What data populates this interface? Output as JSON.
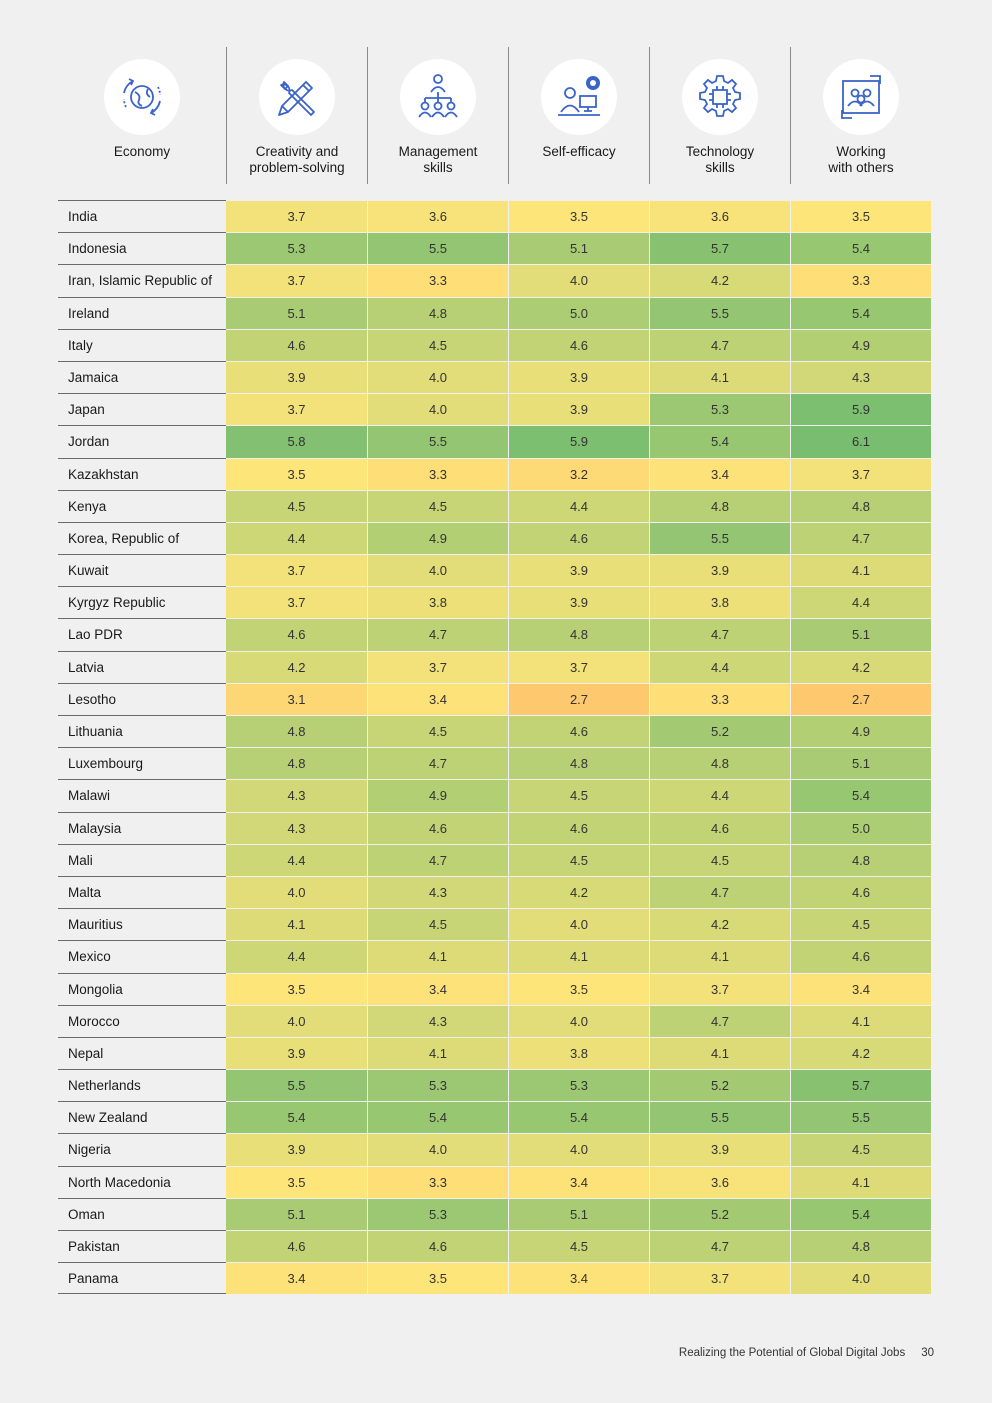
{
  "header": {
    "economy_label": "Economy",
    "metrics": [
      {
        "label": "Creativity and\nproblem-solving",
        "icon": "tools-pencil-icon"
      },
      {
        "label": "Management\nskills",
        "icon": "team-hierarchy-icon"
      },
      {
        "label": "Self-efficacy",
        "icon": "person-computer-icon"
      },
      {
        "label": "Technology\nskills",
        "icon": "gear-chip-icon"
      },
      {
        "label": "Working\nwith others",
        "icon": "group-collaboration-icon"
      }
    ],
    "economy_icon": "globe-cycle-icon"
  },
  "colors": {
    "scale_low": "#fdc86e",
    "scale_mid": "#fde57a",
    "scale_high": "#78bd70"
  },
  "rows": [
    {
      "economy": "India",
      "values": [
        "3.7",
        "3.6",
        "3.5",
        "3.6",
        "3.5"
      ]
    },
    {
      "economy": "Indonesia",
      "values": [
        "5.3",
        "5.5",
        "5.1",
        "5.7",
        "5.4"
      ]
    },
    {
      "economy": "Iran, Islamic Republic of",
      "values": [
        "3.7",
        "3.3",
        "4.0",
        "4.2",
        "3.3"
      ]
    },
    {
      "economy": "Ireland",
      "values": [
        "5.1",
        "4.8",
        "5.0",
        "5.5",
        "5.4"
      ]
    },
    {
      "economy": "Italy",
      "values": [
        "4.6",
        "4.5",
        "4.6",
        "4.7",
        "4.9"
      ]
    },
    {
      "economy": "Jamaica",
      "values": [
        "3.9",
        "4.0",
        "3.9",
        "4.1",
        "4.3"
      ]
    },
    {
      "economy": "Japan",
      "values": [
        "3.7",
        "4.0",
        "3.9",
        "5.3",
        "5.9"
      ]
    },
    {
      "economy": "Jordan",
      "values": [
        "5.8",
        "5.5",
        "5.9",
        "5.4",
        "6.1"
      ]
    },
    {
      "economy": "Kazakhstan",
      "values": [
        "3.5",
        "3.3",
        "3.2",
        "3.4",
        "3.7"
      ]
    },
    {
      "economy": "Kenya",
      "values": [
        "4.5",
        "4.5",
        "4.4",
        "4.8",
        "4.8"
      ]
    },
    {
      "economy": "Korea, Republic of",
      "values": [
        "4.4",
        "4.9",
        "4.6",
        "5.5",
        "4.7"
      ]
    },
    {
      "economy": "Kuwait",
      "values": [
        "3.7",
        "4.0",
        "3.9",
        "3.9",
        "4.1"
      ]
    },
    {
      "economy": "Kyrgyz Republic",
      "values": [
        "3.7",
        "3.8",
        "3.9",
        "3.8",
        "4.4"
      ]
    },
    {
      "economy": "Lao PDR",
      "values": [
        "4.6",
        "4.7",
        "4.8",
        "4.7",
        "5.1"
      ]
    },
    {
      "economy": "Latvia",
      "values": [
        "4.2",
        "3.7",
        "3.7",
        "4.4",
        "4.2"
      ]
    },
    {
      "economy": "Lesotho",
      "values": [
        "3.1",
        "3.4",
        "2.7",
        "3.3",
        "2.7"
      ]
    },
    {
      "economy": "Lithuania",
      "values": [
        "4.8",
        "4.5",
        "4.6",
        "5.2",
        "4.9"
      ]
    },
    {
      "economy": "Luxembourg",
      "values": [
        "4.8",
        "4.7",
        "4.8",
        "4.8",
        "5.1"
      ]
    },
    {
      "economy": "Malawi",
      "values": [
        "4.3",
        "4.9",
        "4.5",
        "4.4",
        "5.4"
      ]
    },
    {
      "economy": "Malaysia",
      "values": [
        "4.3",
        "4.6",
        "4.6",
        "4.6",
        "5.0"
      ]
    },
    {
      "economy": "Mali",
      "values": [
        "4.4",
        "4.7",
        "4.5",
        "4.5",
        "4.8"
      ]
    },
    {
      "economy": "Malta",
      "values": [
        "4.0",
        "4.3",
        "4.2",
        "4.7",
        "4.6"
      ]
    },
    {
      "economy": "Mauritius",
      "values": [
        "4.1",
        "4.5",
        "4.0",
        "4.2",
        "4.5"
      ]
    },
    {
      "economy": "Mexico",
      "values": [
        "4.4",
        "4.1",
        "4.1",
        "4.1",
        "4.6"
      ]
    },
    {
      "economy": "Mongolia",
      "values": [
        "3.5",
        "3.4",
        "3.5",
        "3.7",
        "3.4"
      ]
    },
    {
      "economy": "Morocco",
      "values": [
        "4.0",
        "4.3",
        "4.0",
        "4.7",
        "4.1"
      ]
    },
    {
      "economy": "Nepal",
      "values": [
        "3.9",
        "4.1",
        "3.8",
        "4.1",
        "4.2"
      ]
    },
    {
      "economy": "Netherlands",
      "values": [
        "5.5",
        "5.3",
        "5.3",
        "5.2",
        "5.7"
      ]
    },
    {
      "economy": "New Zealand",
      "values": [
        "5.4",
        "5.4",
        "5.4",
        "5.5",
        "5.5"
      ]
    },
    {
      "economy": "Nigeria",
      "values": [
        "3.9",
        "4.0",
        "4.0",
        "3.9",
        "4.5"
      ]
    },
    {
      "economy": "North Macedonia",
      "values": [
        "3.5",
        "3.3",
        "3.4",
        "3.6",
        "4.1"
      ]
    },
    {
      "economy": "Oman",
      "values": [
        "5.1",
        "5.3",
        "5.1",
        "5.2",
        "5.4"
      ]
    },
    {
      "economy": "Pakistan",
      "values": [
        "4.6",
        "4.6",
        "4.5",
        "4.7",
        "4.8"
      ]
    },
    {
      "economy": "Panama",
      "values": [
        "3.4",
        "3.5",
        "3.4",
        "3.7",
        "4.0"
      ]
    }
  ],
  "footer": {
    "title": "Realizing the Potential of Global Digital Jobs",
    "page_number": "30"
  }
}
